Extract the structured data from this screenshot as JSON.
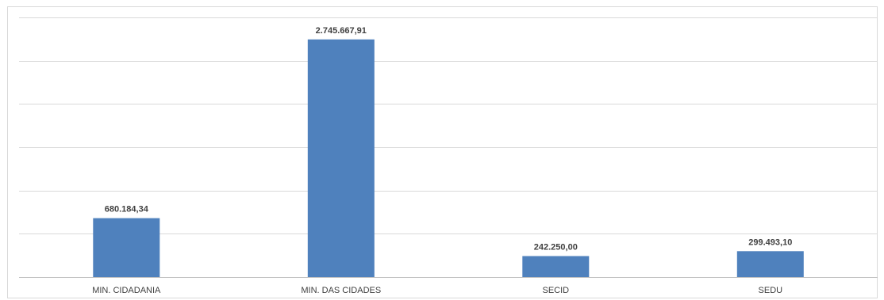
{
  "chart_data": {
    "type": "bar",
    "categories": [
      "MIN. CIDADANIA",
      "MIN. DAS CIDADES",
      "SECID",
      "SEDU"
    ],
    "values": [
      680184.34,
      2745667.91,
      242250.0,
      299493.1
    ],
    "data_labels": [
      "680.184,34",
      "2.745.667,91",
      "242.250,00",
      "299.493,10"
    ],
    "ylim": [
      0,
      3000000
    ],
    "y_gridline_step": 500000,
    "y_tick_labels_visible": false,
    "grid": true,
    "legend": "none",
    "bar_color": "#4f81bd",
    "title": "",
    "xlabel": "",
    "ylabel": ""
  }
}
